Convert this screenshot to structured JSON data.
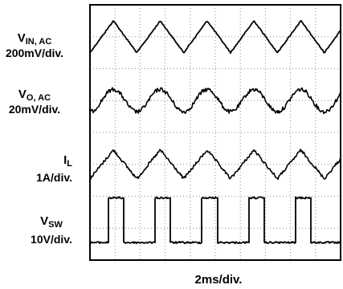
{
  "chart_data": {
    "type": "line",
    "xlabel": "2ms/div.",
    "x_divisions": 10,
    "y_divisions": 8,
    "grid": true,
    "channels": [
      {
        "name_main": "V",
        "name_sub": "IN, AC",
        "scale": "200mV/div.",
        "shape": "triangle",
        "period_div": 1.87,
        "amplitude_div": 0.5,
        "center_div": 7.0
      },
      {
        "name_main": "V",
        "name_sub": "O, AC",
        "scale": "20mV/div.",
        "shape": "sine-noisy",
        "period_div": 1.87,
        "amplitude_div": 0.35,
        "center_div": 5.0
      },
      {
        "name_main": "I",
        "name_sub": "L",
        "scale": "1A/div.",
        "shape": "triangle-noisy",
        "period_div": 1.87,
        "amplitude_div": 0.45,
        "center_div": 3.0
      },
      {
        "name_main": "V",
        "name_sub": "SW",
        "scale": "10V/div.",
        "shape": "pulse",
        "period_div": 1.87,
        "duty": 0.33,
        "high_div": 1.95,
        "low_div": 0.55
      }
    ],
    "colors": {
      "trace": "#000000",
      "grid": "#8c8c8c",
      "background": "#ffffff"
    }
  }
}
